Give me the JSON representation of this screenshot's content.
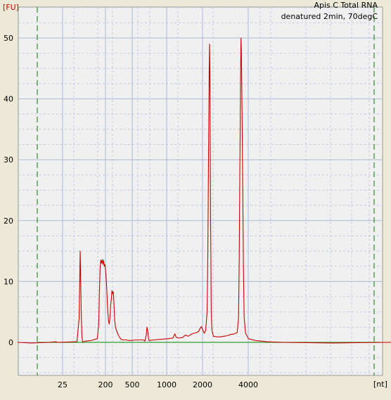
{
  "chart_data": {
    "type": "line",
    "title": "Apis C Total RNA",
    "subtitle": "denatured 2min, 70degC",
    "ylabel": "[FU]",
    "xlabel": "[nt]",
    "y_ticks": [
      0,
      10,
      20,
      30,
      40,
      50
    ],
    "x_ticks": [
      "25",
      "200",
      "500",
      "1000",
      "2000",
      "4000"
    ],
    "ylim": [
      -5,
      55
    ],
    "grid": true,
    "colors": {
      "background": "#ece9d8",
      "plot_background": "#f0f0f0",
      "grid_major": "#aeb8d8",
      "grid_minor": "#c4cbe2",
      "trace": "#cc0000",
      "baseline": "#2e9e2e",
      "markers": "#2e8b2e",
      "axis_label": "#cc0000"
    },
    "series": [
      {
        "values": [
          [
            0,
            0
          ],
          [
            20,
            -0.1
          ],
          [
            45,
            0
          ],
          [
            55,
            0.1
          ],
          [
            57,
            0
          ],
          [
            85,
            0.1
          ],
          [
            88,
            4
          ],
          [
            89.5,
            15
          ],
          [
            90,
            12
          ],
          [
            91,
            5
          ],
          [
            92,
            1
          ],
          [
            93,
            0
          ],
          [
            96,
            0.2
          ],
          [
            105,
            0.3
          ],
          [
            114,
            0.6
          ],
          [
            116,
            3
          ],
          [
            117,
            8
          ],
          [
            118,
            12
          ],
          [
            119,
            13.5
          ],
          [
            120,
            13
          ],
          [
            121,
            13.6
          ],
          [
            122,
            12.8
          ],
          [
            123,
            13.5
          ],
          [
            124,
            12.5
          ],
          [
            125,
            12.8
          ],
          [
            126,
            11.5
          ],
          [
            127,
            10
          ],
          [
            128,
            7.5
          ],
          [
            129,
            5
          ],
          [
            130,
            3.5
          ],
          [
            131,
            3
          ],
          [
            132,
            4
          ],
          [
            133,
            6
          ],
          [
            134,
            7
          ],
          [
            135,
            8.5
          ],
          [
            136,
            8
          ],
          [
            137,
            8.3
          ],
          [
            138,
            6
          ],
          [
            139,
            3.5
          ],
          [
            140,
            2.5
          ],
          [
            142,
            1.8
          ],
          [
            144,
            1.2
          ],
          [
            146,
            0.8
          ],
          [
            148,
            0.5
          ],
          [
            150,
            0.4
          ],
          [
            155,
            0.4
          ],
          [
            160,
            0.3
          ],
          [
            170,
            0.4
          ],
          [
            180,
            0.4
          ],
          [
            182,
            0.2
          ],
          [
            184,
            1.2
          ],
          [
            185,
            2.5
          ],
          [
            186,
            2
          ],
          [
            187,
            0.8
          ],
          [
            188,
            0.3
          ],
          [
            195,
            0.4
          ],
          [
            205,
            0.5
          ],
          [
            215,
            0.6
          ],
          [
            222,
            0.7
          ],
          [
            225,
            1.4
          ],
          [
            227,
            0.8
          ],
          [
            230,
            0.7
          ],
          [
            236,
            0.8
          ],
          [
            240,
            1.2
          ],
          [
            244,
            1
          ],
          [
            248,
            1.3
          ],
          [
            252,
            1.5
          ],
          [
            256,
            1.6
          ],
          [
            259,
            1.8
          ],
          [
            261,
            2.3
          ],
          [
            263,
            2.6
          ],
          [
            265,
            2
          ],
          [
            267,
            1.5
          ],
          [
            269,
            2
          ],
          [
            271,
            5
          ],
          [
            272,
            14
          ],
          [
            273,
            30
          ],
          [
            274,
            45
          ],
          [
            274.5,
            49
          ],
          [
            275,
            44
          ],
          [
            276,
            20
          ],
          [
            277,
            5
          ],
          [
            278,
            2
          ],
          [
            280,
            1
          ],
          [
            285,
            0.9
          ],
          [
            290,
            0.9
          ],
          [
            295,
            1
          ],
          [
            300,
            1.1
          ],
          [
            305,
            1.3
          ],
          [
            310,
            1.4
          ],
          [
            314,
            1.6
          ],
          [
            316,
            4
          ],
          [
            317,
            14
          ],
          [
            318,
            30
          ],
          [
            319,
            45
          ],
          [
            319.5,
            50
          ],
          [
            320,
            48
          ],
          [
            321,
            38
          ],
          [
            322,
            25
          ],
          [
            323,
            12
          ],
          [
            324,
            4
          ],
          [
            326,
            1.5
          ],
          [
            330,
            0.6
          ],
          [
            340,
            0.3
          ],
          [
            350,
            0.2
          ],
          [
            356,
            0.1
          ],
          [
            380,
            0
          ],
          [
            450,
            -0.1
          ],
          [
            530,
            0
          ],
          [
            540,
            0
          ]
        ]
      }
    ]
  }
}
